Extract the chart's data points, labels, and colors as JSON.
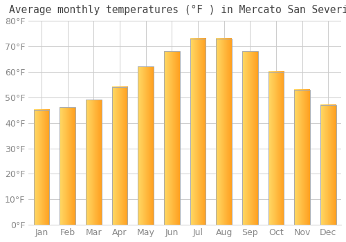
{
  "title": "Average monthly temperatures (°F ) in Mercato San Severino",
  "months": [
    "Jan",
    "Feb",
    "Mar",
    "Apr",
    "May",
    "Jun",
    "Jul",
    "Aug",
    "Sep",
    "Oct",
    "Nov",
    "Dec"
  ],
  "values": [
    45,
    46,
    49,
    54,
    62,
    68,
    73,
    73,
    68,
    60,
    53,
    47
  ],
  "bar_color_left": "#FFD966",
  "bar_color_right": "#FFA020",
  "bar_edge_color": "#AAAAAA",
  "background_color": "#FFFFFF",
  "plot_bg_color": "#FFFFFF",
  "ylim": [
    0,
    80
  ],
  "ytick_step": 10,
  "grid_color": "#CCCCCC",
  "title_fontsize": 10.5,
  "tick_fontsize": 9,
  "tick_color": "#888888"
}
